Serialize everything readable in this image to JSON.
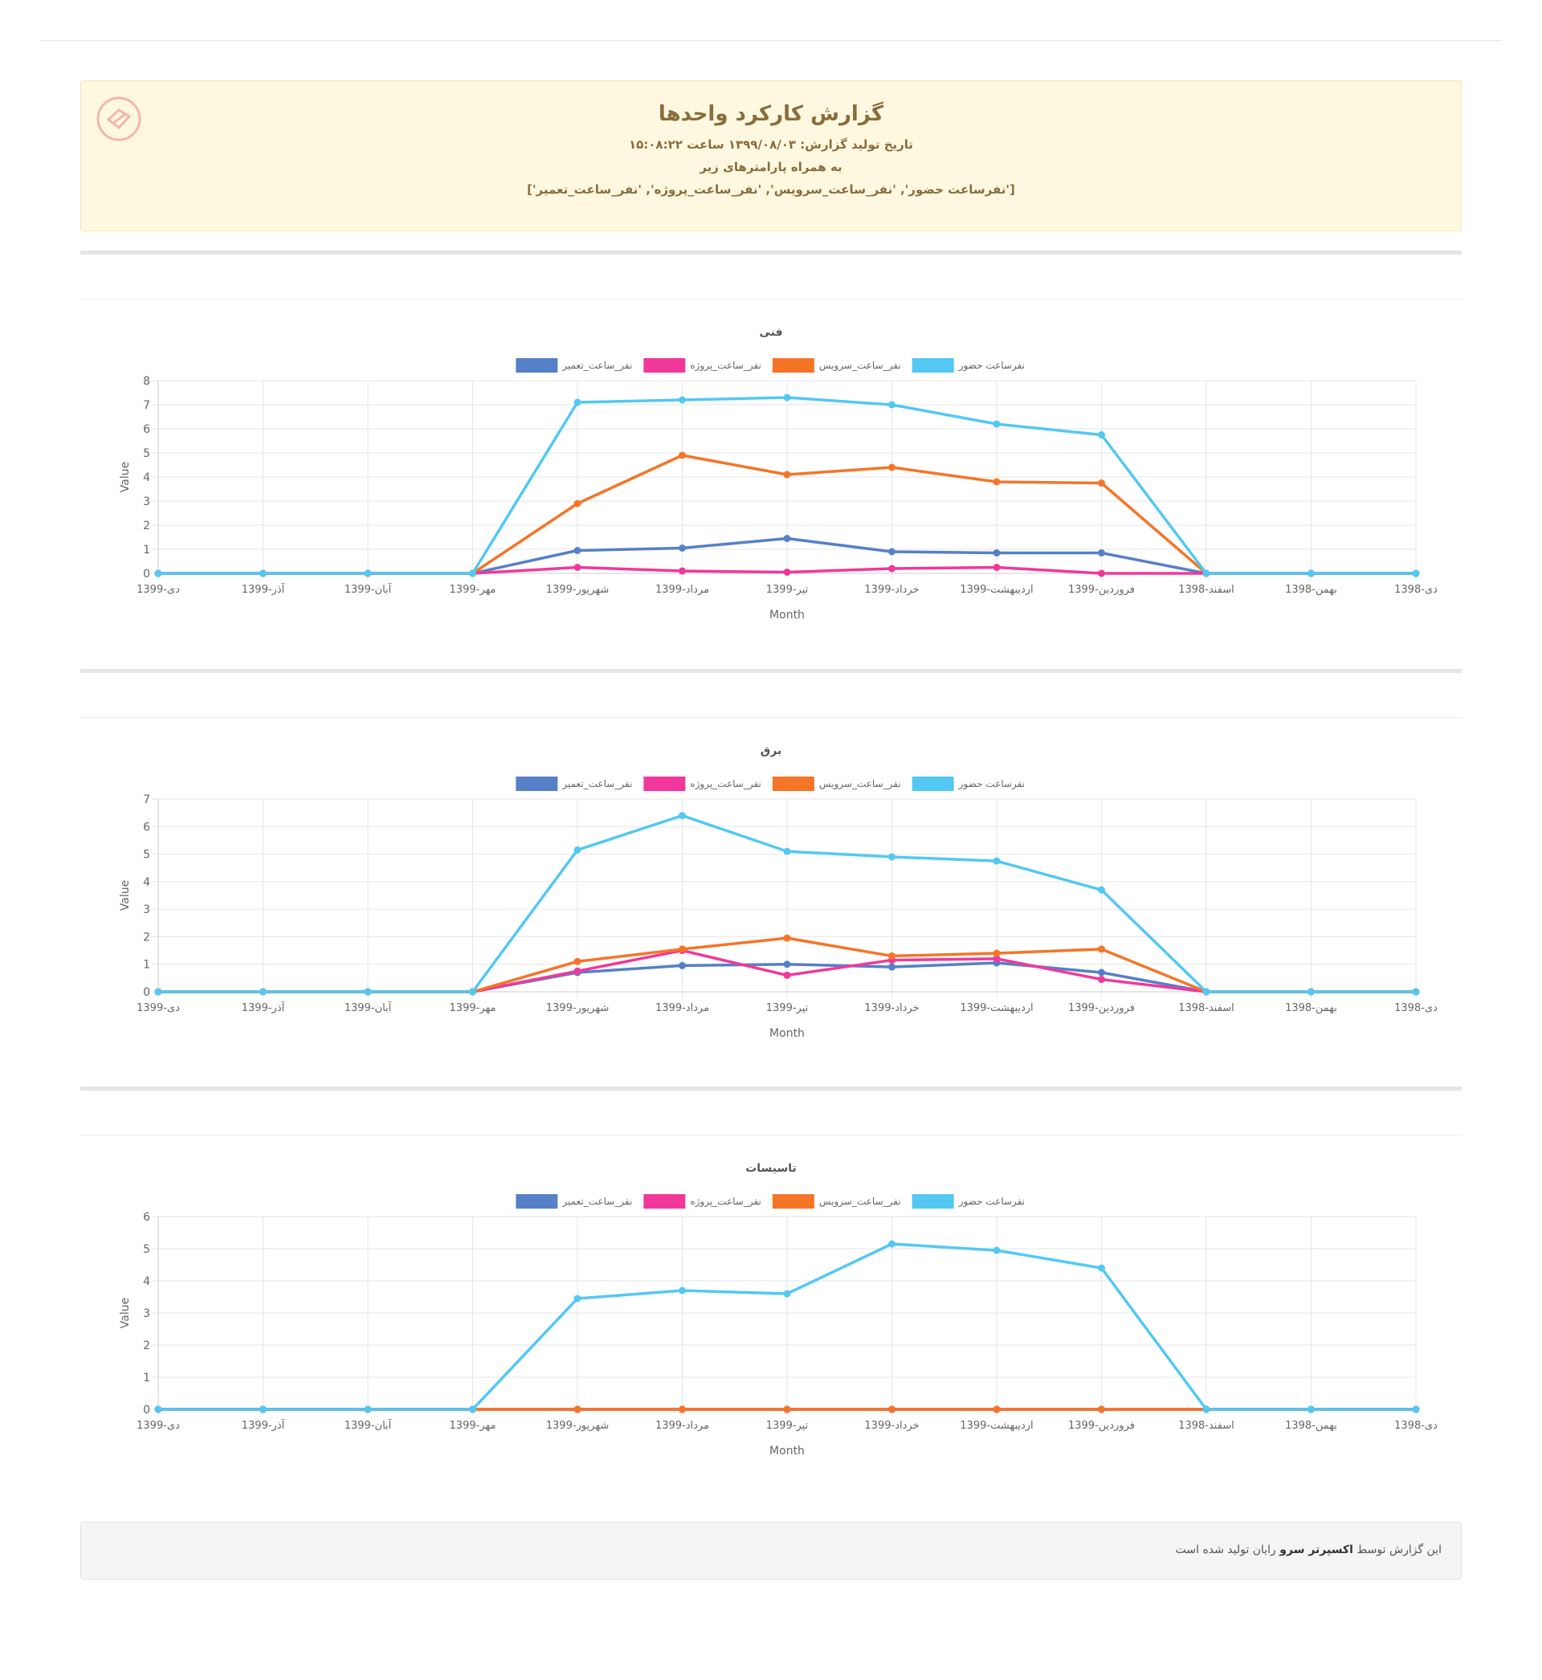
{
  "header": {
    "title": "گزارش کارکرد واحدها",
    "date_line": "تاریخ تولید گزارش: ۱۳۹۹/۰۸/۰۳ ساعت ۱۵:۰۸:۲۲",
    "params_line": "به همراه پارامترهای زیر",
    "params_list": "['نفرساعت حضور', 'نفر_ساعت_سرویس', 'نفر_ساعت_پروژه', 'نفر_ساعت_تعمیر']"
  },
  "footer": {
    "prefix": "این گزارش توسط",
    "brand": "اکسپرتر سرو",
    "suffix": "رایان تولید شده است"
  },
  "colors": {
    "attendance": "#53c8f3",
    "service": "#f57527",
    "project": "#f1389a",
    "repair": "#5680c7"
  },
  "chart_data": [
    {
      "type": "line",
      "title": "فنی",
      "xlabel": "Month",
      "ylabel": "Value",
      "ylim": [
        0,
        8
      ],
      "grid": true,
      "legend_position": "top-center",
      "categories": [
        "1399-دی",
        "1399-آذر",
        "1399-آبان",
        "1399-مهر",
        "1399-شهریور",
        "1399-مرداد",
        "1399-تیر",
        "1399-خرداد",
        "1399-اردیبهشت",
        "1399-فروردین",
        "1398-اسفند",
        "1398-بهمن",
        "1398-دی"
      ],
      "series": [
        {
          "name": "نفرساعت حضور",
          "color": "#53c8f3",
          "values": [
            0,
            0,
            0,
            0,
            7.1,
            7.2,
            7.3,
            7.0,
            6.2,
            5.75,
            0,
            0,
            0
          ]
        },
        {
          "name": "نفر_ساعت_سرویس",
          "color": "#f57527",
          "values": [
            0,
            0,
            0,
            0,
            2.9,
            4.9,
            4.1,
            4.4,
            3.8,
            3.75,
            0,
            0,
            0
          ]
        },
        {
          "name": "نفر_ساعت_پروژه",
          "color": "#f1389a",
          "values": [
            0,
            0,
            0,
            0,
            0.25,
            0.1,
            0.05,
            0.2,
            0.25,
            0,
            0,
            0,
            0
          ]
        },
        {
          "name": "نفر_ساعت_تعمیر",
          "color": "#5680c7",
          "values": [
            0,
            0,
            0,
            0,
            0.95,
            1.05,
            1.45,
            0.9,
            0.85,
            0.85,
            0,
            0,
            0
          ]
        }
      ]
    },
    {
      "type": "line",
      "title": "برق",
      "xlabel": "Month",
      "ylabel": "Value",
      "ylim": [
        0,
        7
      ],
      "grid": true,
      "legend_position": "top-center",
      "categories": [
        "1399-دی",
        "1399-آذر",
        "1399-آبان",
        "1399-مهر",
        "1399-شهریور",
        "1399-مرداد",
        "1399-تیر",
        "1399-خرداد",
        "1399-اردیبهشت",
        "1399-فروردین",
        "1398-اسفند",
        "1398-بهمن",
        "1398-دی"
      ],
      "series": [
        {
          "name": "نفرساعت حضور",
          "color": "#53c8f3",
          "values": [
            0,
            0,
            0,
            0,
            5.15,
            6.4,
            5.1,
            4.9,
            4.75,
            3.7,
            0,
            0,
            0
          ]
        },
        {
          "name": "نفر_ساعت_سرویس",
          "color": "#f57527",
          "values": [
            0,
            0,
            0,
            0,
            1.1,
            1.55,
            1.95,
            1.3,
            1.4,
            1.55,
            0,
            0,
            0
          ]
        },
        {
          "name": "نفر_ساعت_پروژه",
          "color": "#f1389a",
          "values": [
            0,
            0,
            0,
            0,
            0.75,
            1.5,
            0.6,
            1.15,
            1.2,
            0.45,
            0,
            0,
            0
          ]
        },
        {
          "name": "نفر_ساعت_تعمیر",
          "color": "#5680c7",
          "values": [
            0,
            0,
            0,
            0,
            0.7,
            0.95,
            1.0,
            0.9,
            1.05,
            0.7,
            0,
            0,
            0
          ]
        }
      ]
    },
    {
      "type": "line",
      "title": "تاسیسات",
      "xlabel": "Month",
      "ylabel": "Value",
      "ylim": [
        0,
        6
      ],
      "grid": true,
      "legend_position": "top-center",
      "categories": [
        "1399-دی",
        "1399-آذر",
        "1399-آبان",
        "1399-مهر",
        "1399-شهریور",
        "1399-مرداد",
        "1399-تیر",
        "1399-خرداد",
        "1399-اردیبهشت",
        "1399-فروردین",
        "1398-اسفند",
        "1398-بهمن",
        "1398-دی"
      ],
      "series": [
        {
          "name": "نفرساعت حضور",
          "color": "#53c8f3",
          "values": [
            0,
            0,
            0,
            0,
            3.45,
            3.7,
            3.6,
            5.15,
            4.95,
            4.4,
            0,
            0,
            0
          ]
        },
        {
          "name": "نفر_ساعت_سرویس",
          "color": "#f57527",
          "values": [
            0,
            0,
            0,
            0,
            0,
            0,
            0,
            0,
            0,
            0,
            0,
            0,
            0
          ]
        },
        {
          "name": "نفر_ساعت_پروژه",
          "color": "#f1389a",
          "values": [
            0,
            0,
            0,
            0,
            0,
            0,
            0,
            0,
            0,
            0,
            0,
            0,
            0
          ]
        },
        {
          "name": "نفر_ساعت_تعمیر",
          "color": "#5680c7",
          "values": [
            0,
            0,
            0,
            0,
            0,
            0,
            0,
            0,
            0,
            0,
            0,
            0,
            0
          ]
        }
      ]
    }
  ]
}
